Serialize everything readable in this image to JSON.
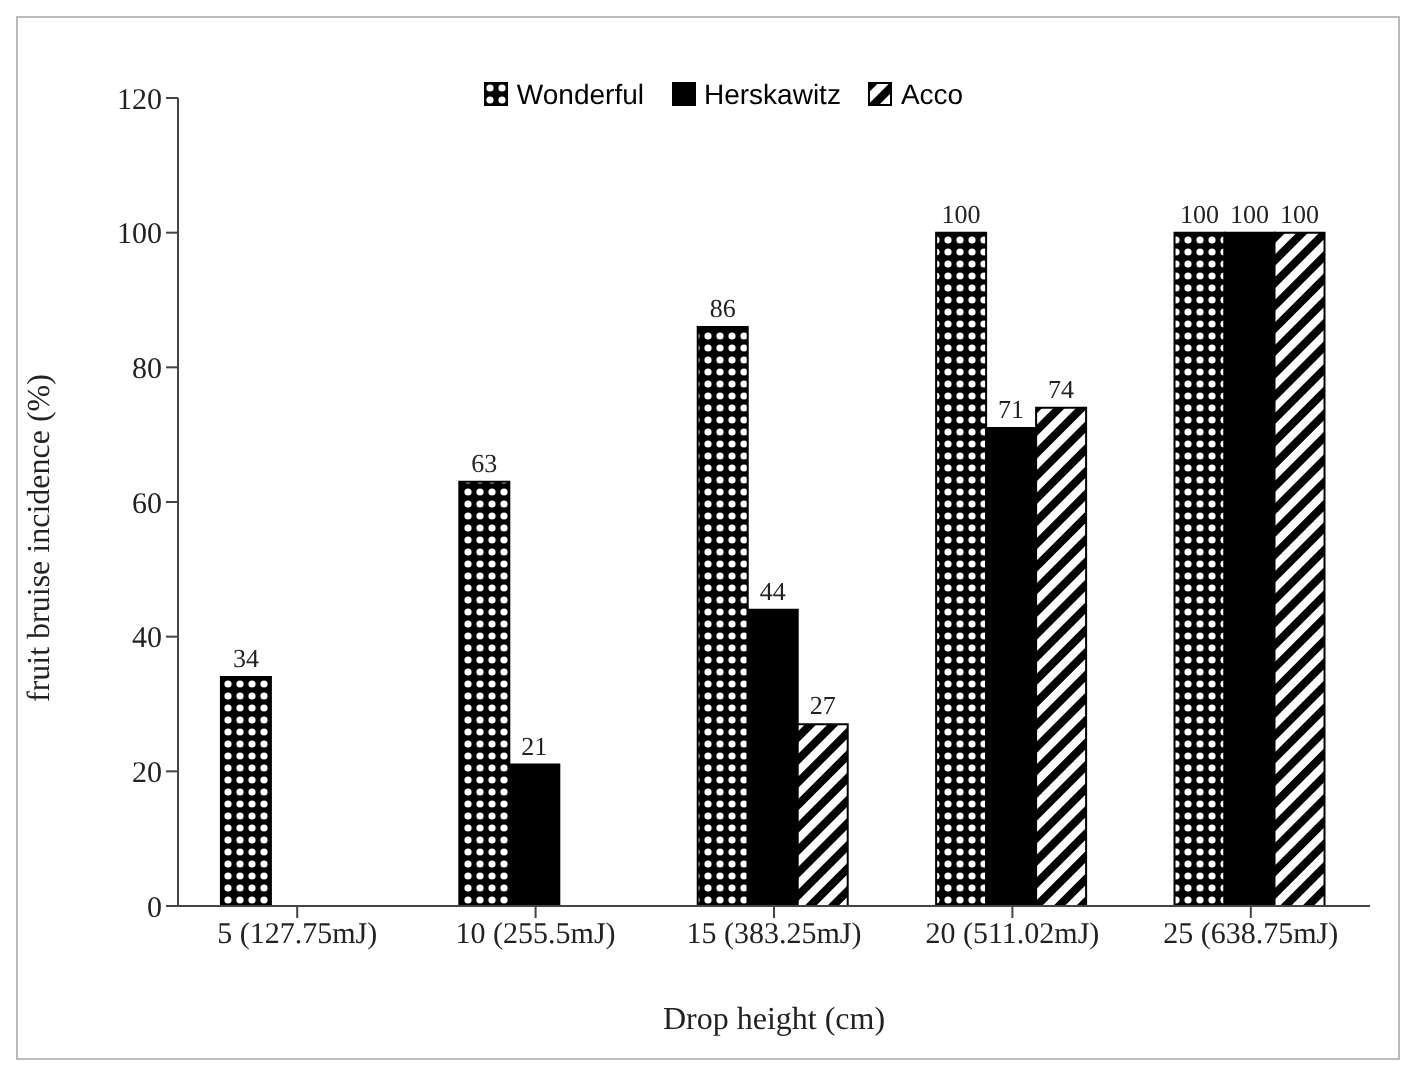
{
  "chart_data": {
    "type": "bar",
    "xlabel": "Drop height (cm)",
    "ylabel": "fruit bruise incidence (%)",
    "categories": [
      "5 (127.75mJ)",
      "10 (255.5mJ)",
      "15 (383.25mJ)",
      "20 (511.02mJ)",
      "25 (638.75mJ)"
    ],
    "series": [
      {
        "name": "Wonderful",
        "color": "#000000",
        "values": [
          34,
          63,
          86,
          100,
          100
        ]
      },
      {
        "name": "Herskawitz",
        "color": "#000000",
        "values": [
          null,
          21,
          44,
          71,
          100
        ]
      },
      {
        "name": "Acco",
        "color": "#000000",
        "values": [
          null,
          null,
          27,
          74,
          100
        ]
      }
    ],
    "ylim": [
      0,
      120
    ],
    "yticks": [
      0,
      20,
      40,
      60,
      80,
      100,
      120
    ],
    "grid": false,
    "legend": "top",
    "data_labels": true
  }
}
